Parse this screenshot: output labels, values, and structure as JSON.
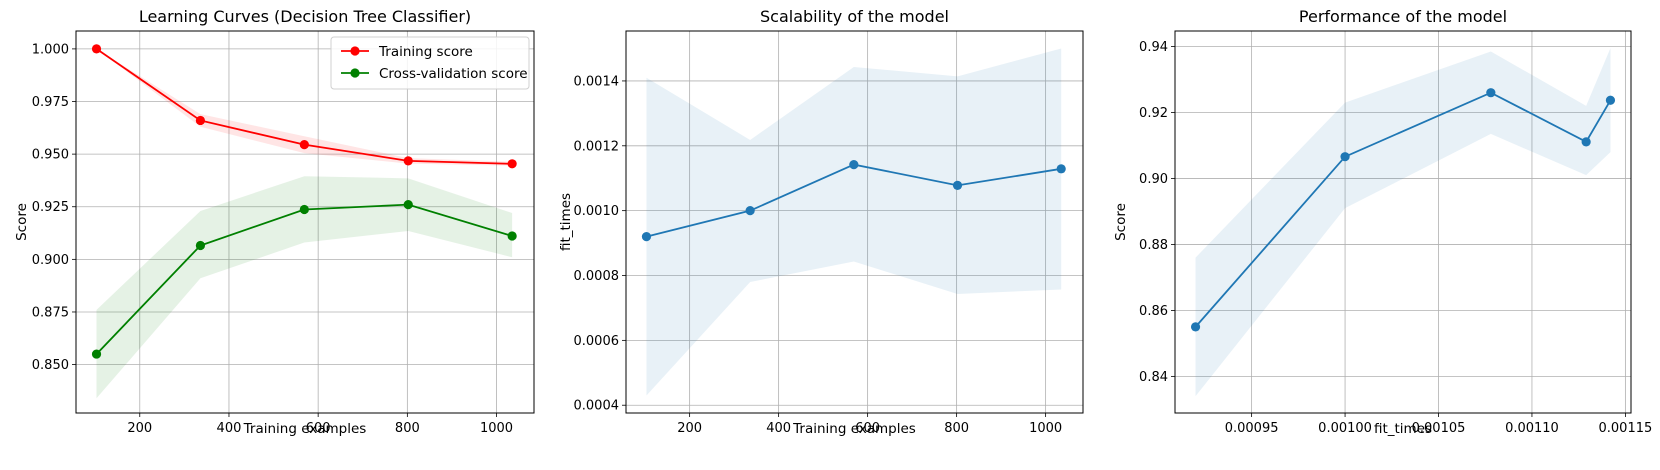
{
  "chart_data": [
    {
      "type": "line",
      "title": "Learning Curves (Decision Tree Classifier)",
      "xlabel": "Training examples",
      "ylabel": "Score",
      "xlim": [
        57,
        1084
      ],
      "ylim": [
        0.827,
        1.0085
      ],
      "xticks": [
        200,
        400,
        600,
        800,
        1000
      ],
      "xtick_labels": [
        "200",
        "400",
        "600",
        "800",
        "1000"
      ],
      "yticks": [
        0.85,
        0.875,
        0.9,
        0.925,
        0.95,
        0.975,
        1.0
      ],
      "ytick_labels": [
        "0.850",
        "0.875",
        "0.900",
        "0.925",
        "0.950",
        "0.975",
        "1.000"
      ],
      "grid": true,
      "legend": "top-right",
      "x": [
        103,
        336,
        569,
        802,
        1035
      ],
      "series": [
        {
          "name": "Training score",
          "color": "#ff0000",
          "values": [
            1.0,
            0.966,
            0.9545,
            0.9468,
            0.9454
          ],
          "band_low": [
            1.0,
            0.963,
            0.9505,
            0.9455,
            0.9445
          ],
          "band_high": [
            1.0,
            0.969,
            0.9585,
            0.9481,
            0.9464
          ]
        },
        {
          "name": "Cross-validation score",
          "color": "#008000",
          "values": [
            0.855,
            0.9066,
            0.9237,
            0.926,
            0.9111
          ],
          "band_low": [
            0.834,
            0.891,
            0.908,
            0.9135,
            0.901
          ],
          "band_high": [
            0.876,
            0.923,
            0.9395,
            0.9385,
            0.922
          ]
        }
      ]
    },
    {
      "type": "line",
      "title": "Scalability of the model",
      "xlabel": "Training examples",
      "ylabel": "fit_times",
      "xlim": [
        57,
        1084
      ],
      "ylim": [
        0.000376,
        0.001554
      ],
      "xticks": [
        200,
        400,
        600,
        800,
        1000
      ],
      "xtick_labels": [
        "200",
        "400",
        "600",
        "800",
        "1000"
      ],
      "yticks": [
        0.0004,
        0.0006,
        0.0008,
        0.001,
        0.0012,
        0.0014
      ],
      "ytick_labels": [
        "0.0004",
        "0.0006",
        "0.0008",
        "0.0010",
        "0.0012",
        "0.0014"
      ],
      "grid": true,
      "series": [
        {
          "color": "#1f77b4",
          "x": [
            103,
            336,
            569,
            802,
            1035
          ],
          "values": [
            0.00092,
            0.001,
            0.001142,
            0.001078,
            0.001129
          ],
          "band_low": [
            0.00043,
            0.00078,
            0.000843,
            0.000743,
            0.000757
          ],
          "band_high": [
            0.00141,
            0.001218,
            0.001443,
            0.001414,
            0.0015
          ]
        }
      ]
    },
    {
      "type": "line",
      "title": "Performance of the model",
      "xlabel": "fit_times",
      "ylabel": "Score",
      "xlim": [
        0.000909,
        0.001153
      ],
      "ylim": [
        0.8289,
        0.9447
      ],
      "xticks": [
        0.00095,
        0.001,
        0.00105,
        0.0011,
        0.00115
      ],
      "xtick_labels": [
        "0.00095",
        "0.00100",
        "0.00105",
        "0.00110",
        "0.00115"
      ],
      "yticks": [
        0.84,
        0.86,
        0.88,
        0.9,
        0.92,
        0.94
      ],
      "ytick_labels": [
        "0.84",
        "0.86",
        "0.88",
        "0.90",
        "0.92",
        "0.94"
      ],
      "grid": true,
      "series": [
        {
          "color": "#1f77b4",
          "x": [
            0.00092,
            0.001,
            0.001078,
            0.001129,
            0.001142
          ],
          "values": [
            0.855,
            0.9066,
            0.926,
            0.9111,
            0.9237
          ],
          "band_low": [
            0.834,
            0.891,
            0.9135,
            0.901,
            0.908
          ],
          "band_high": [
            0.876,
            0.923,
            0.9385,
            0.922,
            0.9395
          ]
        }
      ]
    }
  ]
}
